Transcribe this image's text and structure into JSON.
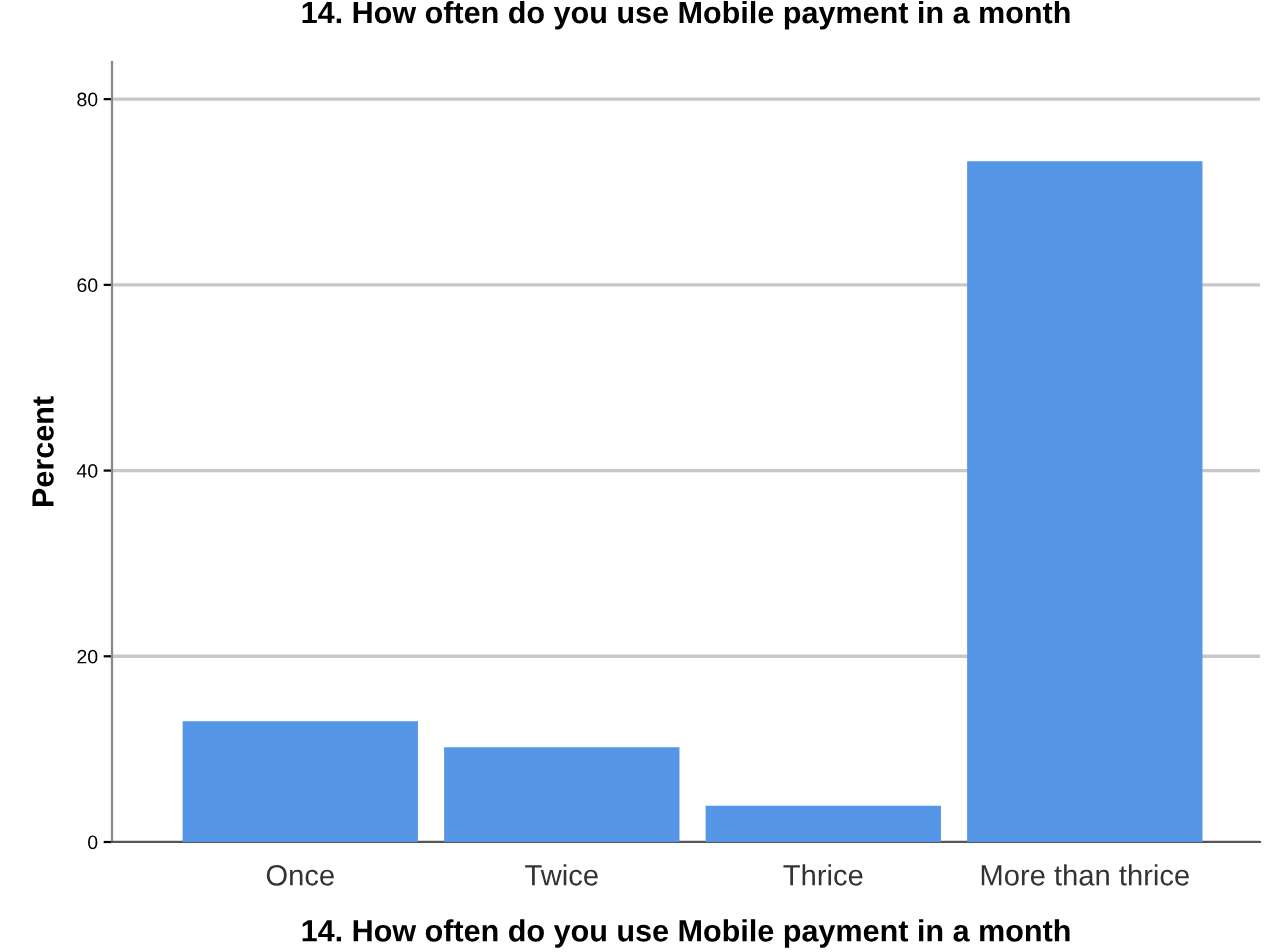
{
  "chart_data": {
    "type": "bar",
    "title": "14. How often do you use Mobile payment in a month",
    "xlabel": "14. How often do you use Mobile payment in a month",
    "ylabel": "Percent",
    "categories": [
      "Once",
      "Twice",
      "Thrice",
      "More than thrice"
    ],
    "values": [
      13.0,
      10.2,
      3.9,
      73.3
    ],
    "color": "#5596e6",
    "ylim": [
      0,
      84
    ],
    "yticks": [
      0,
      20,
      40,
      60,
      80
    ],
    "grid": "y",
    "legend": false
  }
}
